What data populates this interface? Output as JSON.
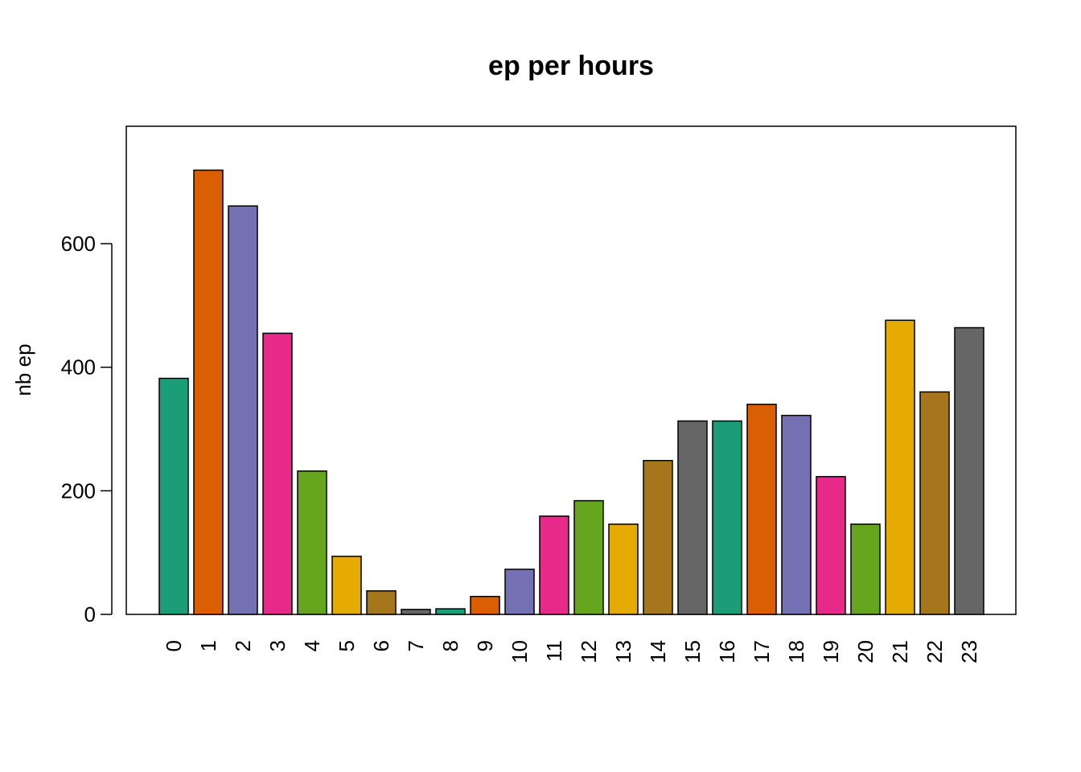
{
  "chart_data": {
    "type": "bar",
    "title": "ep per hours",
    "xlabel": "",
    "ylabel": "nb ep",
    "categories": [
      "0",
      "1",
      "2",
      "3",
      "4",
      "5",
      "6",
      "7",
      "8",
      "9",
      "10",
      "11",
      "12",
      "13",
      "14",
      "15",
      "16",
      "17",
      "18",
      "19",
      "20",
      "21",
      "22",
      "23"
    ],
    "values": [
      382,
      719,
      661,
      455,
      232,
      94,
      38,
      8,
      9,
      29,
      73,
      159,
      184,
      146,
      249,
      313,
      313,
      340,
      322,
      223,
      146,
      476,
      360,
      464
    ],
    "colors": [
      "#1B9E77",
      "#D95F02",
      "#7570B3",
      "#E7298A",
      "#66A61E",
      "#E6AB02",
      "#A6761D",
      "#666666",
      "#1B9E77",
      "#D95F02",
      "#7570B3",
      "#E7298A",
      "#66A61E",
      "#E6AB02",
      "#A6761D",
      "#666666",
      "#1B9E77",
      "#D95F02",
      "#7570B3",
      "#E7298A",
      "#66A61E",
      "#E6AB02",
      "#A6761D",
      "#666666"
    ],
    "yticks": [
      "0",
      "200",
      "400",
      "600"
    ],
    "ylim": [
      0,
      790
    ],
    "grid": false,
    "legend": "none"
  }
}
